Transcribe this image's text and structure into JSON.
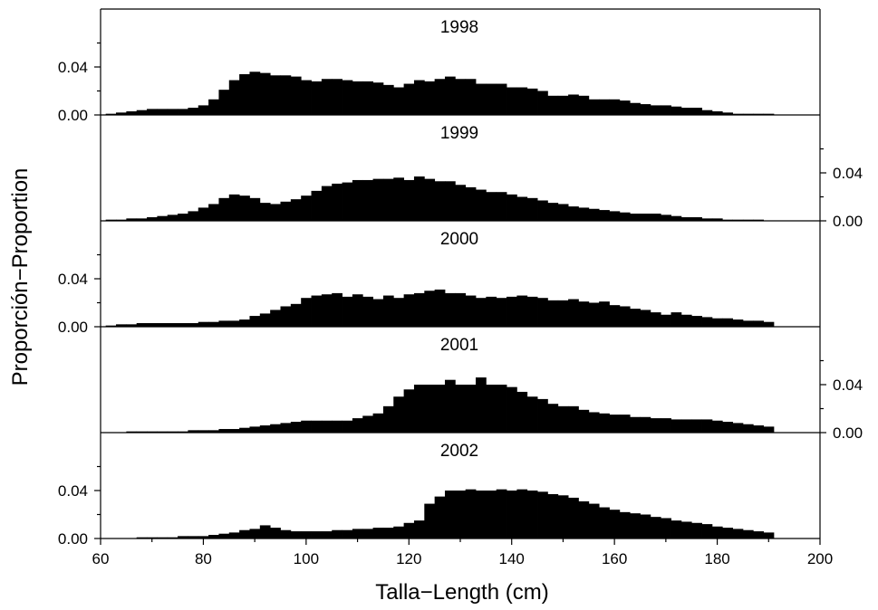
{
  "chart_data": {
    "type": "bar",
    "xlabel": "Talla−Length (cm)",
    "ylabel": "Proporción−Proportion",
    "xlim": [
      60,
      200
    ],
    "ylim": [
      0,
      0.08
    ],
    "x_ticks": [
      60,
      80,
      100,
      120,
      140,
      160,
      180,
      200
    ],
    "y_ticks": [
      0.0,
      0.04
    ],
    "y_tick_labels": [
      "0.00",
      "0.04"
    ],
    "bin_width": 2,
    "bin_start": [
      61,
      63,
      65,
      67,
      69,
      71,
      73,
      75,
      77,
      79,
      81,
      83,
      85,
      87,
      89,
      91,
      93,
      95,
      97,
      99,
      101,
      103,
      105,
      107,
      109,
      111,
      113,
      115,
      117,
      119,
      121,
      123,
      125,
      127,
      129,
      131,
      133,
      135,
      137,
      139,
      141,
      143,
      145,
      147,
      149,
      151,
      153,
      155,
      157,
      159,
      161,
      163,
      165,
      167,
      169,
      171,
      173,
      175,
      177,
      179,
      181,
      183,
      185,
      187,
      189
    ],
    "series": [
      {
        "name": "1998",
        "y_axis_side": "left",
        "values": [
          0.001,
          0.002,
          0.003,
          0.004,
          0.005,
          0.005,
          0.005,
          0.005,
          0.006,
          0.008,
          0.013,
          0.021,
          0.029,
          0.034,
          0.036,
          0.035,
          0.033,
          0.033,
          0.032,
          0.029,
          0.028,
          0.03,
          0.03,
          0.029,
          0.028,
          0.028,
          0.027,
          0.025,
          0.023,
          0.026,
          0.029,
          0.028,
          0.03,
          0.032,
          0.03,
          0.03,
          0.026,
          0.026,
          0.026,
          0.023,
          0.023,
          0.022,
          0.02,
          0.016,
          0.016,
          0.017,
          0.016,
          0.013,
          0.013,
          0.013,
          0.012,
          0.01,
          0.009,
          0.008,
          0.008,
          0.007,
          0.006,
          0.006,
          0.004,
          0.003,
          0.002,
          0.001,
          0.001,
          0.001,
          0.001
        ]
      },
      {
        "name": "1999",
        "y_axis_side": "right",
        "values": [
          0.001,
          0.001,
          0.002,
          0.002,
          0.003,
          0.004,
          0.005,
          0.006,
          0.008,
          0.011,
          0.014,
          0.019,
          0.022,
          0.021,
          0.019,
          0.015,
          0.014,
          0.016,
          0.018,
          0.021,
          0.025,
          0.029,
          0.031,
          0.032,
          0.034,
          0.034,
          0.035,
          0.035,
          0.036,
          0.034,
          0.037,
          0.035,
          0.033,
          0.033,
          0.03,
          0.028,
          0.026,
          0.024,
          0.024,
          0.022,
          0.02,
          0.019,
          0.017,
          0.015,
          0.014,
          0.012,
          0.011,
          0.01,
          0.009,
          0.008,
          0.007,
          0.006,
          0.006,
          0.006,
          0.005,
          0.004,
          0.003,
          0.003,
          0.002,
          0.002,
          0.001,
          0.001,
          0.001,
          0.001,
          0.0
        ]
      },
      {
        "name": "2000",
        "y_axis_side": "left",
        "values": [
          0.001,
          0.002,
          0.002,
          0.003,
          0.003,
          0.003,
          0.003,
          0.003,
          0.003,
          0.004,
          0.004,
          0.005,
          0.005,
          0.006,
          0.009,
          0.011,
          0.014,
          0.017,
          0.019,
          0.024,
          0.026,
          0.027,
          0.028,
          0.025,
          0.027,
          0.025,
          0.023,
          0.026,
          0.024,
          0.027,
          0.028,
          0.03,
          0.031,
          0.028,
          0.028,
          0.026,
          0.024,
          0.025,
          0.024,
          0.025,
          0.026,
          0.025,
          0.024,
          0.022,
          0.022,
          0.023,
          0.021,
          0.02,
          0.021,
          0.018,
          0.017,
          0.015,
          0.014,
          0.012,
          0.01,
          0.012,
          0.01,
          0.009,
          0.008,
          0.007,
          0.007,
          0.006,
          0.005,
          0.005,
          0.004
        ]
      },
      {
        "name": "2001",
        "y_axis_side": "right",
        "values": [
          0.0,
          0.0,
          0.001,
          0.001,
          0.001,
          0.001,
          0.001,
          0.001,
          0.002,
          0.002,
          0.002,
          0.003,
          0.003,
          0.004,
          0.005,
          0.006,
          0.007,
          0.008,
          0.009,
          0.01,
          0.01,
          0.01,
          0.01,
          0.01,
          0.012,
          0.014,
          0.016,
          0.022,
          0.03,
          0.036,
          0.04,
          0.04,
          0.04,
          0.044,
          0.04,
          0.04,
          0.046,
          0.04,
          0.04,
          0.038,
          0.034,
          0.03,
          0.028,
          0.024,
          0.022,
          0.022,
          0.019,
          0.017,
          0.016,
          0.015,
          0.015,
          0.013,
          0.013,
          0.012,
          0.012,
          0.011,
          0.011,
          0.011,
          0.011,
          0.01,
          0.009,
          0.008,
          0.007,
          0.006,
          0.005
        ]
      },
      {
        "name": "2002",
        "y_axis_side": "left",
        "values": [
          0.0,
          0.0,
          0.0,
          0.001,
          0.001,
          0.001,
          0.001,
          0.002,
          0.002,
          0.002,
          0.003,
          0.004,
          0.005,
          0.007,
          0.008,
          0.011,
          0.009,
          0.007,
          0.006,
          0.006,
          0.006,
          0.006,
          0.007,
          0.007,
          0.008,
          0.008,
          0.009,
          0.009,
          0.01,
          0.013,
          0.015,
          0.029,
          0.035,
          0.04,
          0.04,
          0.041,
          0.04,
          0.04,
          0.041,
          0.04,
          0.041,
          0.04,
          0.039,
          0.037,
          0.036,
          0.034,
          0.031,
          0.029,
          0.026,
          0.024,
          0.022,
          0.021,
          0.02,
          0.018,
          0.017,
          0.015,
          0.014,
          0.013,
          0.012,
          0.01,
          0.009,
          0.008,
          0.007,
          0.006,
          0.005
        ]
      }
    ]
  }
}
